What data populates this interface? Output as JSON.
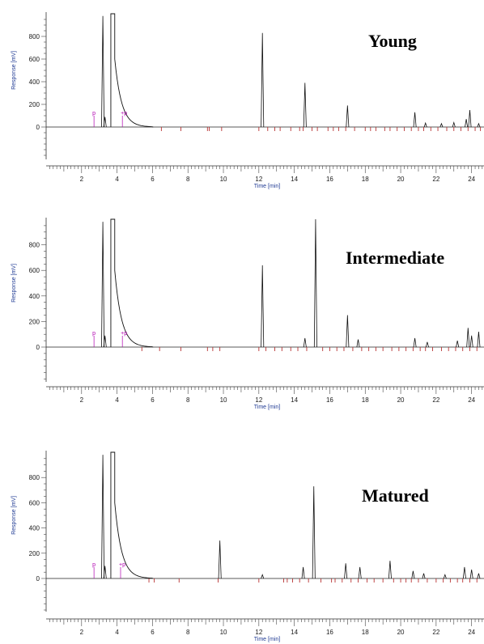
{
  "chart_data": [
    {
      "type": "line",
      "title": "Young",
      "xlabel": "Time [min]",
      "ylabel": "Response [mV]",
      "xlim": [
        0,
        24.7
      ],
      "ylim": [
        -250,
        1000
      ],
      "x_ticks": [
        "2",
        "4",
        "6",
        "8",
        "10",
        "12",
        "14",
        "16",
        "18",
        "20",
        "22",
        "24"
      ],
      "y_ticks": [
        "0",
        "200",
        "400",
        "600",
        "800"
      ],
      "solvent_peak": {
        "x": 3.65,
        "y": 1000
      },
      "peaks": [
        {
          "x": 3.2,
          "y": 980
        },
        {
          "x": 3.32,
          "y": 90
        },
        {
          "x": 12.2,
          "y": 830
        },
        {
          "x": 14.6,
          "y": 390
        },
        {
          "x": 17.0,
          "y": 190
        },
        {
          "x": 20.8,
          "y": 130
        },
        {
          "x": 21.4,
          "y": 35
        },
        {
          "x": 22.3,
          "y": 30
        },
        {
          "x": 23.0,
          "y": 40
        },
        {
          "x": 23.7,
          "y": 70
        },
        {
          "x": 23.9,
          "y": 150
        },
        {
          "x": 24.4,
          "y": 30
        }
      ],
      "markers": [
        {
          "x": 2.7,
          "label": "p"
        },
        {
          "x": 4.3,
          "label": "+p"
        }
      ],
      "integration_ticks": [
        6.5,
        7.6,
        9.1,
        9.2,
        9.9,
        12.0,
        12.5,
        12.9,
        13.2,
        13.8,
        14.3,
        14.5,
        15.0,
        15.3,
        15.9,
        16.2,
        16.5,
        16.9,
        17.4,
        18.0,
        18.3,
        18.6,
        19.1,
        19.4,
        19.8,
        20.2,
        20.6,
        21.0,
        21.3,
        21.7,
        22.1,
        22.6,
        23.0,
        23.4,
        23.8,
        24.2,
        24.5
      ]
    },
    {
      "type": "line",
      "title": "Intermediate",
      "xlabel": "Time [min]",
      "ylabel": "Response [mV]",
      "xlim": [
        0,
        24.7
      ],
      "ylim": [
        -250,
        1000
      ],
      "x_ticks": [
        "2",
        "4",
        "6",
        "8",
        "10",
        "12",
        "14",
        "16",
        "18",
        "20",
        "22",
        "24"
      ],
      "y_ticks": [
        "0",
        "200",
        "400",
        "600",
        "800"
      ],
      "solvent_peak": {
        "x": 3.65,
        "y": 1000
      },
      "peaks": [
        {
          "x": 3.2,
          "y": 980
        },
        {
          "x": 3.32,
          "y": 90
        },
        {
          "x": 12.2,
          "y": 640
        },
        {
          "x": 14.6,
          "y": 70
        },
        {
          "x": 15.2,
          "y": 1000
        },
        {
          "x": 17.0,
          "y": 250
        },
        {
          "x": 17.6,
          "y": 60
        },
        {
          "x": 20.8,
          "y": 70
        },
        {
          "x": 21.5,
          "y": 40
        },
        {
          "x": 23.2,
          "y": 50
        },
        {
          "x": 23.8,
          "y": 150
        },
        {
          "x": 24.0,
          "y": 90
        },
        {
          "x": 24.4,
          "y": 120
        }
      ],
      "markers": [
        {
          "x": 2.7,
          "label": "p"
        },
        {
          "x": 4.3,
          "label": "+p"
        }
      ],
      "integration_ticks": [
        5.4,
        6.4,
        7.6,
        9.1,
        9.4,
        9.8,
        12.0,
        12.4,
        12.9,
        13.3,
        13.8,
        14.2,
        14.7,
        15.6,
        16.0,
        16.4,
        16.8,
        17.3,
        17.8,
        18.2,
        18.6,
        19.0,
        19.5,
        19.9,
        20.3,
        20.7,
        21.1,
        21.4,
        21.8,
        22.3,
        22.7,
        23.1,
        23.5,
        23.9,
        24.3
      ]
    },
    {
      "type": "line",
      "title": "Matured",
      "xlabel": "Time [min]",
      "ylabel": "Response [mV]",
      "xlim": [
        0,
        24.7
      ],
      "ylim": [
        -250,
        1000
      ],
      "x_ticks": [
        "2",
        "4",
        "6",
        "8",
        "10",
        "12",
        "14",
        "16",
        "18",
        "20",
        "22",
        "24"
      ],
      "y_ticks": [
        "0",
        "200",
        "400",
        "600",
        "800"
      ],
      "solvent_peak": {
        "x": 3.65,
        "y": 1000
      },
      "peaks": [
        {
          "x": 3.2,
          "y": 980
        },
        {
          "x": 3.32,
          "y": 100
        },
        {
          "x": 9.8,
          "y": 300
        },
        {
          "x": 12.2,
          "y": 30
        },
        {
          "x": 14.5,
          "y": 90
        },
        {
          "x": 15.1,
          "y": 730
        },
        {
          "x": 16.9,
          "y": 120
        },
        {
          "x": 17.7,
          "y": 90
        },
        {
          "x": 19.4,
          "y": 140
        },
        {
          "x": 20.7,
          "y": 60
        },
        {
          "x": 21.3,
          "y": 40
        },
        {
          "x": 22.5,
          "y": 30
        },
        {
          "x": 23.6,
          "y": 90
        },
        {
          "x": 24.0,
          "y": 70
        },
        {
          "x": 24.4,
          "y": 40
        }
      ],
      "markers": [
        {
          "x": 2.7,
          "label": "p"
        },
        {
          "x": 4.2,
          "label": "+p"
        }
      ],
      "integration_ticks": [
        5.8,
        6.1,
        7.5,
        9.7,
        12.0,
        13.4,
        13.6,
        13.9,
        14.3,
        14.8,
        15.5,
        16.1,
        16.3,
        16.7,
        17.2,
        17.6,
        18.1,
        18.5,
        19.0,
        19.6,
        20.0,
        20.3,
        20.6,
        21.0,
        21.5,
        22.0,
        22.4,
        22.8,
        23.2,
        23.5,
        23.9,
        24.3
      ]
    }
  ]
}
